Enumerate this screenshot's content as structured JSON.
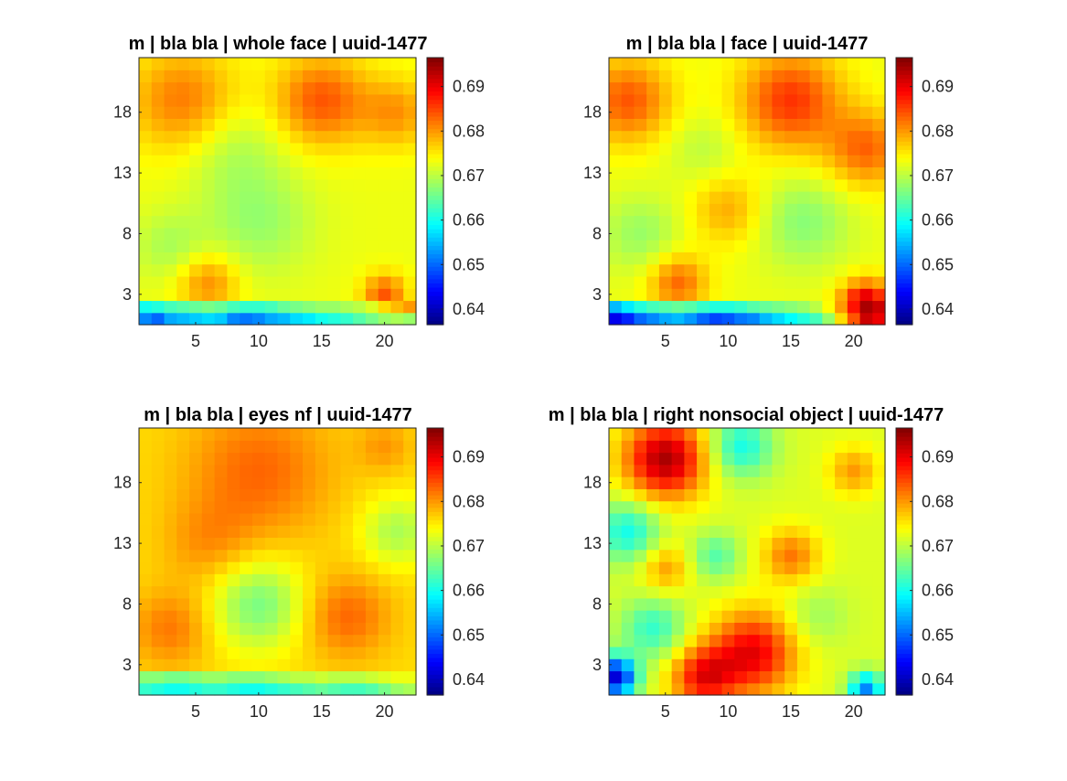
{
  "figure": {
    "background": "#ffffff",
    "colormap": "jet"
  },
  "chart_data": [
    {
      "type": "heatmap",
      "title": "m | bla bla | whole face | uuid-1477",
      "xlabel": "",
      "ylabel": "",
      "x_ticks": [
        "5",
        "10",
        "15",
        "20"
      ],
      "y_ticks": [
        "3",
        "8",
        "13",
        "18"
      ],
      "colorbar_ticks": [
        "0.64",
        "0.65",
        "0.66",
        "0.67",
        "0.68",
        "0.69"
      ],
      "clim": [
        0.6365,
        0.6965
      ],
      "grid_size": [
        22,
        22
      ],
      "bumps": [
        [
          4,
          19,
          0.009,
          3.0
        ],
        [
          15,
          19,
          0.011,
          2.6
        ],
        [
          21,
          18,
          0.007,
          2.0
        ],
        [
          8,
          15,
          -0.004,
          2.8
        ],
        [
          6,
          4,
          0.008,
          1.7
        ],
        [
          10,
          9,
          -0.005,
          3.0
        ],
        [
          20,
          3,
          0.011,
          1.2
        ],
        [
          3,
          7,
          -0.004,
          2.0
        ]
      ],
      "base": 0.673,
      "bottom_rows": [
        [
          0.652,
          0.65,
          0.654,
          0.655,
          0.656,
          0.657,
          0.656,
          0.652,
          0.651,
          0.652,
          0.654,
          0.655,
          0.657,
          0.658,
          0.66,
          0.661,
          0.662,
          0.664,
          0.666,
          0.668,
          0.669,
          0.668
        ],
        [
          0.66,
          0.661,
          0.663,
          0.664,
          0.665,
          0.666,
          0.665,
          0.663,
          0.662,
          0.662,
          0.663,
          0.665,
          0.666,
          0.667,
          0.668,
          0.668,
          0.669,
          0.67,
          0.672,
          0.676,
          0.678,
          0.68
        ]
      ]
    },
    {
      "type": "heatmap",
      "title": "m | bla bla | face | uuid-1477",
      "xlabel": "",
      "ylabel": "",
      "x_ticks": [
        "5",
        "10",
        "15",
        "20"
      ],
      "y_ticks": [
        "3",
        "8",
        "13",
        "18"
      ],
      "colorbar_ticks": [
        "0.64",
        "0.65",
        "0.66",
        "0.67",
        "0.68",
        "0.69"
      ],
      "clim": [
        0.6365,
        0.6965
      ],
      "grid_size": [
        22,
        22
      ],
      "bumps": [
        [
          2,
          19,
          0.011,
          2.4
        ],
        [
          15,
          19,
          0.013,
          2.8
        ],
        [
          21,
          15,
          0.01,
          2.2
        ],
        [
          10,
          10,
          0.006,
          2.0
        ],
        [
          6,
          4,
          0.01,
          1.6
        ],
        [
          16,
          9,
          -0.006,
          2.6
        ],
        [
          21,
          2,
          0.022,
          1.4
        ],
        [
          3,
          8,
          -0.005,
          2.2
        ],
        [
          8,
          15,
          -0.003,
          2.0
        ]
      ],
      "base": 0.673,
      "bottom_rows": [
        [
          0.643,
          0.646,
          0.65,
          0.652,
          0.654,
          0.655,
          0.653,
          0.65,
          0.648,
          0.649,
          0.651,
          0.652,
          0.655,
          0.657,
          0.659,
          0.661,
          0.663,
          0.668,
          0.676,
          0.684,
          0.692,
          0.69
        ],
        [
          0.655,
          0.658,
          0.661,
          0.663,
          0.664,
          0.665,
          0.664,
          0.662,
          0.661,
          0.661,
          0.662,
          0.664,
          0.665,
          0.666,
          0.667,
          0.668,
          0.67,
          0.674,
          0.68,
          0.688,
          0.694,
          0.692
        ]
      ]
    },
    {
      "type": "heatmap",
      "title": "m | bla bla | eyes nf | uuid-1477",
      "xlabel": "",
      "ylabel": "",
      "x_ticks": [
        "5",
        "10",
        "15",
        "20"
      ],
      "y_ticks": [
        "3",
        "8",
        "13",
        "18"
      ],
      "colorbar_ticks": [
        "0.64",
        "0.65",
        "0.66",
        "0.67",
        "0.68",
        "0.69"
      ],
      "clim": [
        0.6365,
        0.6965
      ],
      "grid_size": [
        22,
        22
      ],
      "bumps": [
        [
          10,
          19,
          0.007,
          4.0
        ],
        [
          3,
          6,
          0.006,
          2.2
        ],
        [
          17,
          7,
          0.007,
          2.4
        ],
        [
          10,
          8,
          -0.01,
          2.6
        ],
        [
          21,
          14,
          -0.007,
          2.0
        ],
        [
          20,
          21,
          0.004,
          1.5
        ],
        [
          6,
          13,
          0.004,
          2.5
        ]
      ],
      "base": 0.676,
      "bottom_rows": [
        [
          0.662,
          0.661,
          0.66,
          0.66,
          0.661,
          0.662,
          0.662,
          0.661,
          0.66,
          0.66,
          0.661,
          0.662,
          0.663,
          0.664,
          0.665,
          0.664,
          0.663,
          0.663,
          0.664,
          0.666,
          0.668,
          0.669
        ],
        [
          0.667,
          0.667,
          0.666,
          0.666,
          0.667,
          0.668,
          0.668,
          0.667,
          0.667,
          0.667,
          0.668,
          0.669,
          0.67,
          0.67,
          0.671,
          0.67,
          0.67,
          0.67,
          0.671,
          0.672,
          0.673,
          0.673
        ]
      ]
    },
    {
      "type": "heatmap",
      "title": "m | bla bla | right nonsocial object | uuid-1477",
      "xlabel": "",
      "ylabel": "",
      "x_ticks": [
        "5",
        "10",
        "15",
        "20"
      ],
      "y_ticks": [
        "3",
        "8",
        "13",
        "18"
      ],
      "colorbar_ticks": [
        "0.64",
        "0.65",
        "0.66",
        "0.67",
        "0.68",
        "0.69"
      ],
      "clim": [
        0.6365,
        0.6965
      ],
      "grid_size": [
        22,
        22
      ],
      "bumps": [
        [
          5,
          20,
          0.022,
          2.3
        ],
        [
          12,
          4,
          0.018,
          2.4
        ],
        [
          8,
          2,
          0.016,
          1.8
        ],
        [
          15,
          12,
          0.01,
          1.6
        ],
        [
          5,
          11,
          0.008,
          1.4
        ],
        [
          2,
          14,
          -0.012,
          1.8
        ],
        [
          4,
          6,
          -0.01,
          1.8
        ],
        [
          11,
          21,
          -0.012,
          1.8
        ],
        [
          9,
          12,
          -0.008,
          1.4
        ],
        [
          17,
          7,
          -0.004,
          1.8
        ],
        [
          20,
          19,
          0.008,
          1.4
        ],
        [
          1,
          2,
          -0.03,
          1.2
        ],
        [
          21,
          1,
          -0.02,
          1.0
        ]
      ],
      "base": 0.672,
      "bottom_rows": []
    }
  ]
}
